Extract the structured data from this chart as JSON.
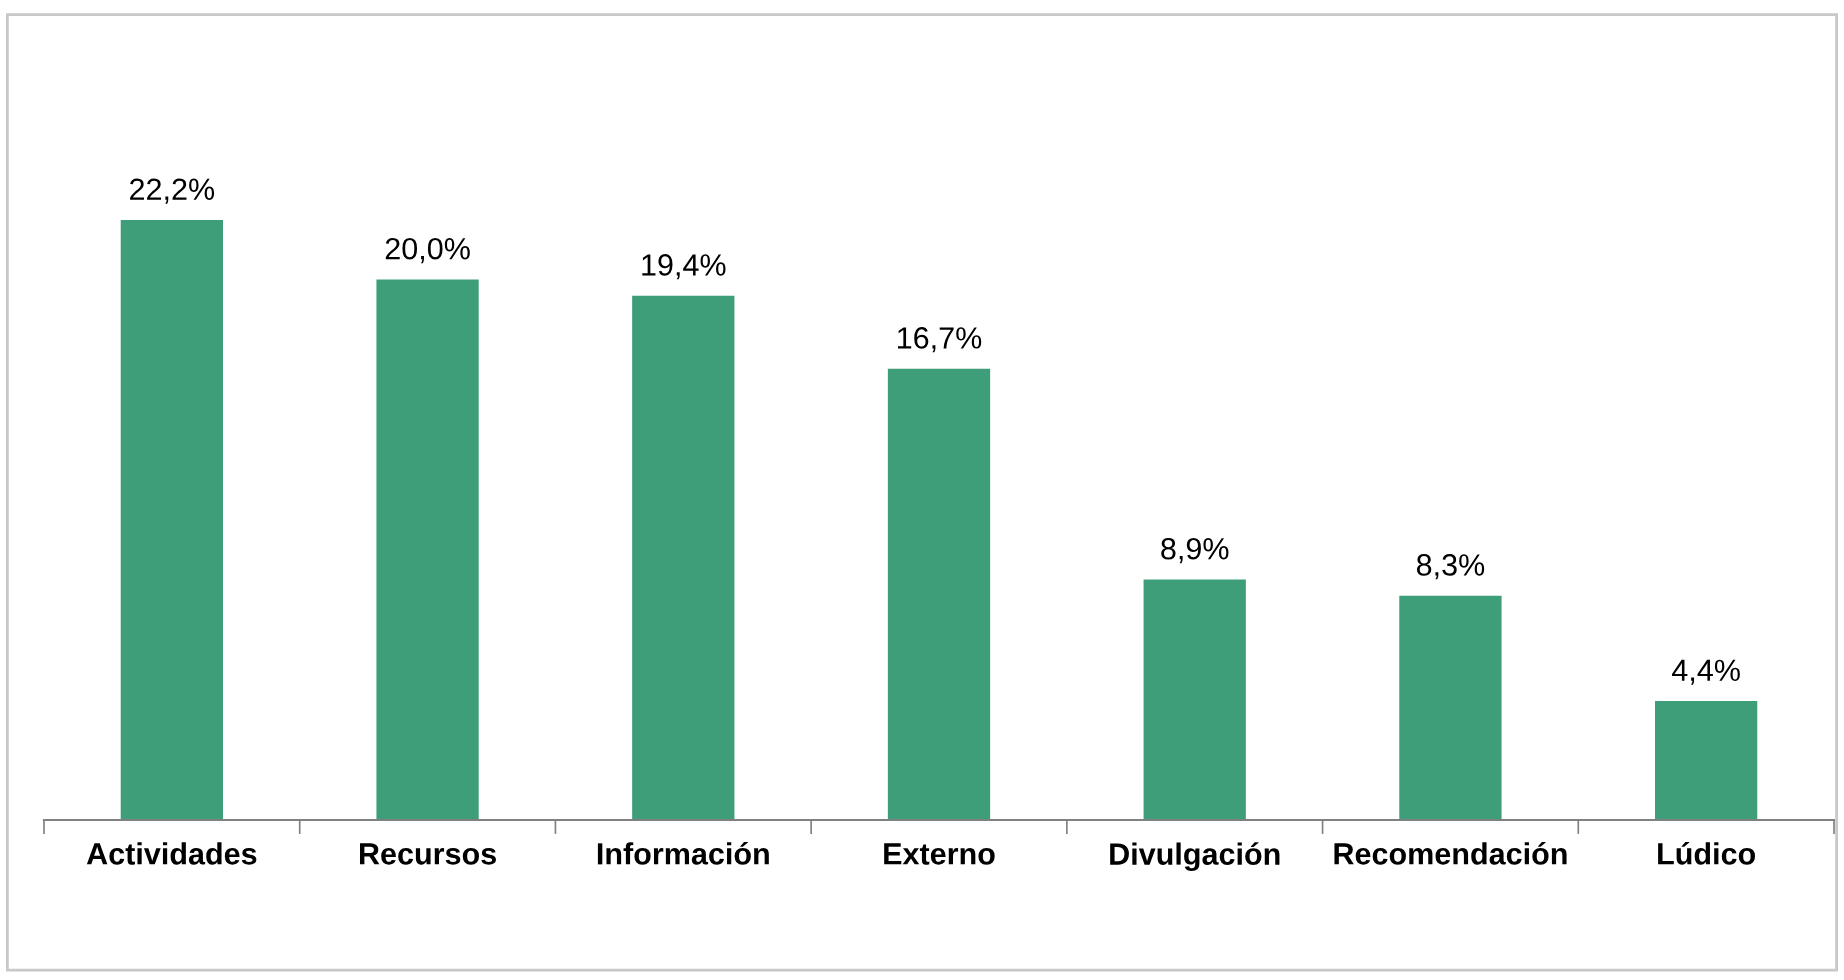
{
  "chart_data": {
    "type": "bar",
    "categories": [
      "Actividades",
      "Recursos",
      "Información",
      "Externo",
      "Divulgación",
      "Recomendación",
      "Lúdico"
    ],
    "values": [
      22.2,
      20.0,
      19.4,
      16.7,
      8.9,
      8.3,
      4.4
    ],
    "value_labels": [
      "22,2%",
      "20,0%",
      "19,4%",
      "16,7%",
      "8,9%",
      "8,3%",
      "4,4%"
    ],
    "color": "#3f9e7a",
    "grid": false,
    "legend": false
  }
}
